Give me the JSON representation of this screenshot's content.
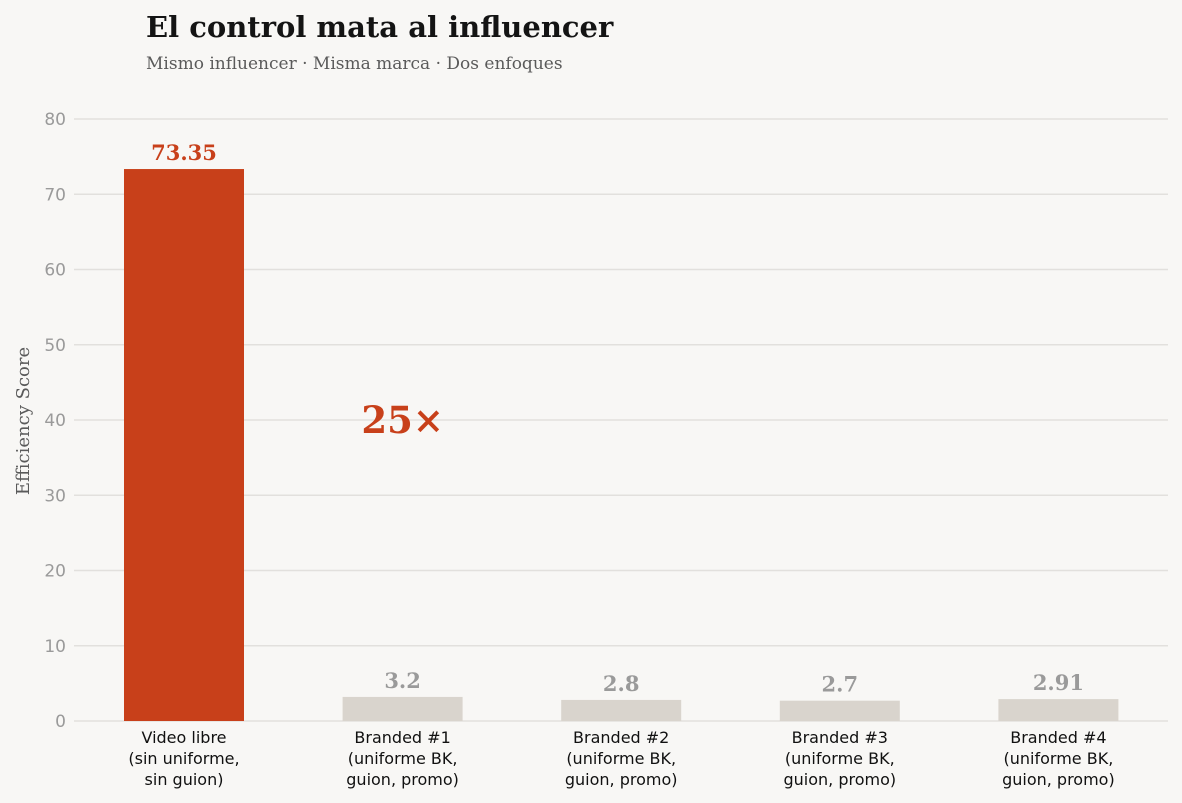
{
  "chart_data": {
    "type": "bar",
    "title": "El control mata al influencer",
    "subtitle": "Mismo influencer · Misma marca · Dos enfoques",
    "ylabel": "Efficiency Score",
    "xlabel": "",
    "ylim": [
      0,
      80
    ],
    "yticks": [
      0,
      10,
      20,
      30,
      40,
      50,
      60,
      70,
      80
    ],
    "grid": true,
    "categories": [
      [
        "Video libre",
        "(sin uniforme,",
        "sin guion)"
      ],
      [
        "Branded #1",
        "(uniforme BK,",
        "guion, promo)"
      ],
      [
        "Branded #2",
        "(uniforme BK,",
        "guion, promo)"
      ],
      [
        "Branded #3",
        "(uniforme BK,",
        "guion, promo)"
      ],
      [
        "Branded #4",
        "(uniforme BK,",
        "guion, promo)"
      ]
    ],
    "values": [
      73.35,
      3.2,
      2.8,
      2.7,
      2.91
    ],
    "value_labels": [
      "73.35",
      "3.2",
      "2.8",
      "2.7",
      "2.91"
    ],
    "bar_colors": [
      "#c8401a",
      "#d9d4cd",
      "#d9d4cd",
      "#d9d4cd",
      "#d9d4cd"
    ],
    "value_label_colors": [
      "#c8401a",
      "#9a9a9a",
      "#9a9a9a",
      "#9a9a9a",
      "#9a9a9a"
    ],
    "annotation": {
      "text": "25×",
      "y": 40,
      "x_category_index": 1,
      "color": "#c8401a"
    }
  }
}
